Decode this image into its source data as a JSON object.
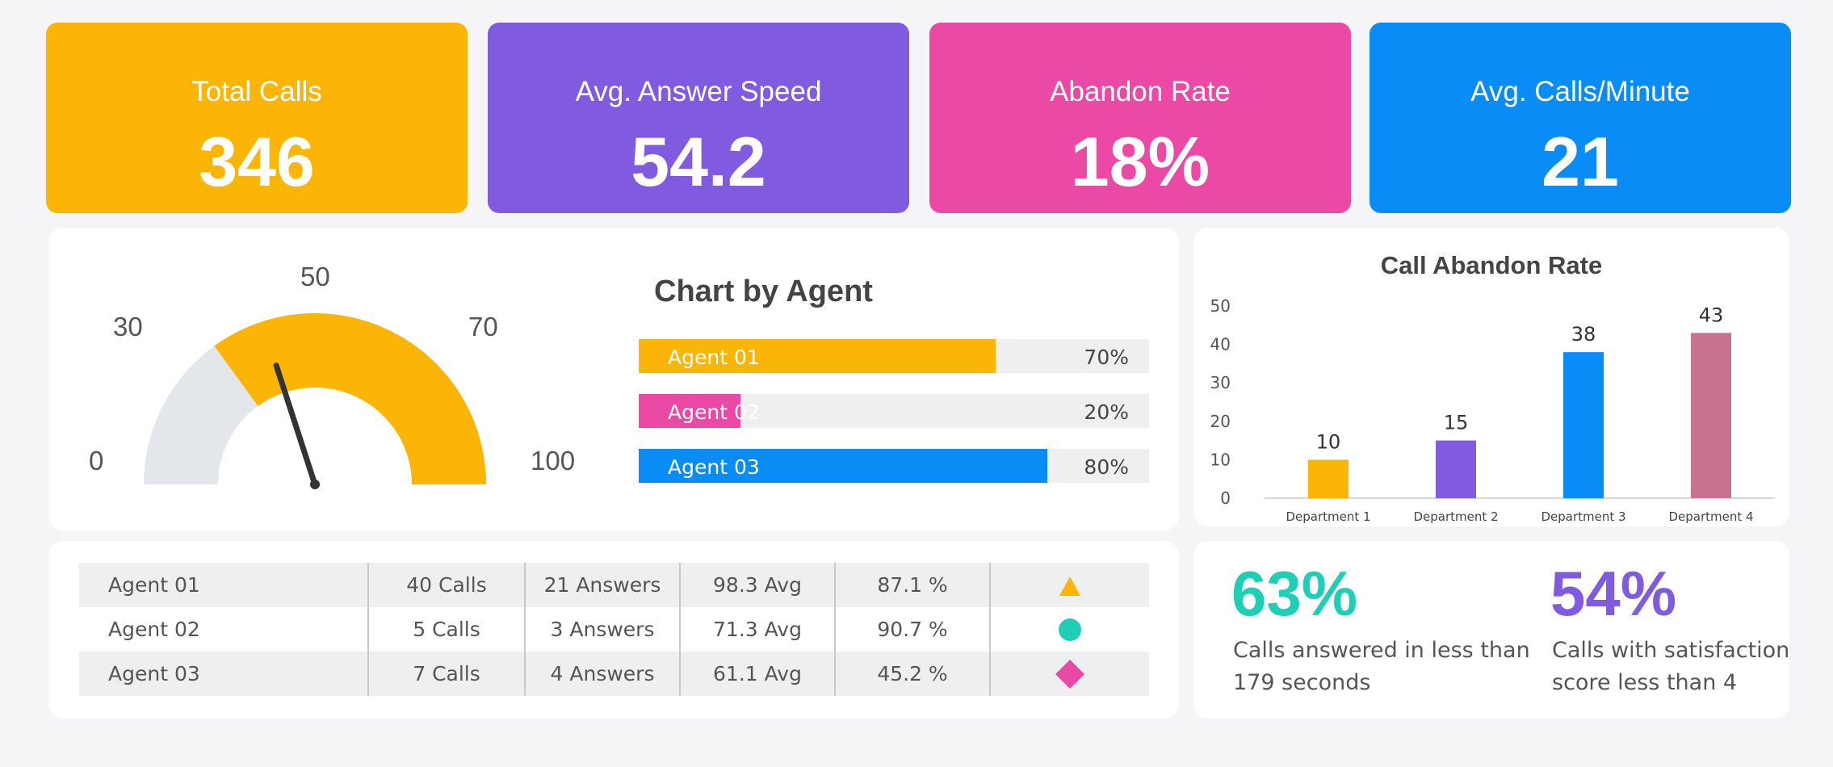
{
  "kpis": [
    {
      "label": "Total Calls",
      "value": "346",
      "color": "#fbb506"
    },
    {
      "label": "Avg. Answer Speed",
      "value": "54.2",
      "color": "#805be0"
    },
    {
      "label": "Abandon Rate",
      "value": "18%",
      "color": "#ea4aa6"
    },
    {
      "label": "Avg. Calls/Minute",
      "value": "21",
      "color": "#0a8cf7"
    }
  ],
  "gauge": {
    "labels": [
      "0",
      "30",
      "50",
      "70",
      "100"
    ],
    "min": 0,
    "max": 100,
    "filled_from": 30,
    "filled_to": 100,
    "needle": 40,
    "fill_color": "#fbb506",
    "track_color": "#e3e6ea"
  },
  "agent_chart": {
    "title": "Chart by Agent",
    "agents": [
      {
        "name": "Agent 01",
        "pct_label": "70%",
        "value": 70,
        "color": "#fbb506"
      },
      {
        "name": "Agent 02",
        "pct_label": "20%",
        "value": 20,
        "color": "#ea4aa6"
      },
      {
        "name": "Agent 03",
        "pct_label": "80%",
        "value": 80,
        "color": "#0a8cf7"
      }
    ]
  },
  "agent_table": {
    "rows": [
      {
        "agent": "Agent 01",
        "calls": "40 Calls",
        "answers": "21 Answers",
        "avg": "98.3 Avg",
        "pct": "87.1 %",
        "marker": "triangle-icon",
        "marker_color": "#fbb506"
      },
      {
        "agent": "Agent 02",
        "calls": "5 Calls",
        "answers": "3 Answers",
        "avg": "71.3 Avg",
        "pct": "90.7 %",
        "marker": "circle-icon",
        "marker_color": "#1fcfb5"
      },
      {
        "agent": "Agent 03",
        "calls": "7 Calls",
        "answers": "4 Answers",
        "avg": "61.1 Avg",
        "pct": "45.2 %",
        "marker": "diamond-icon",
        "marker_color": "#ea4aa6"
      }
    ]
  },
  "chart_data": {
    "type": "bar",
    "title": "Call Abandon Rate",
    "categories": [
      "Department 1",
      "Department 2",
      "Department 3",
      "Department 4"
    ],
    "values": [
      10,
      15,
      38,
      43
    ],
    "colors": [
      "#fbb506",
      "#805be0",
      "#0a8cf7",
      "#c8728f"
    ],
    "yticks": [
      "0",
      "10",
      "20",
      "30",
      "40",
      "50"
    ],
    "ylim": [
      0,
      50
    ],
    "xlabel": "",
    "ylabel": ""
  },
  "stats": [
    {
      "value": "63%",
      "text_line1": "Calls answered in less than",
      "text_line2": "179 seconds",
      "color": "#1fcfb5"
    },
    {
      "value": "54%",
      "text_line1": "Calls with satisfaction",
      "text_line2": "score less than 4",
      "color": "#805be0"
    }
  ]
}
